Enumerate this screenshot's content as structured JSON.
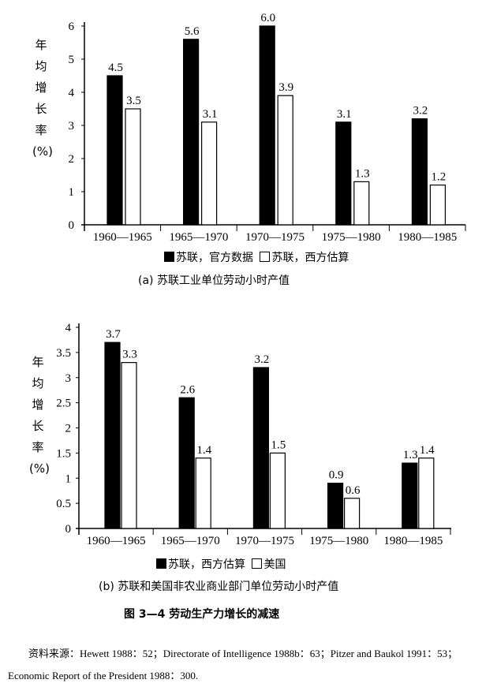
{
  "chart_data": [
    {
      "type": "bar",
      "title": "(a)  苏联工业单位劳动小时产值",
      "ylabel": "年均增长率(%)",
      "xlabel": "",
      "categories": [
        "1960—1965",
        "1965—1970",
        "1970—1975",
        "1975—1980",
        "1980—1985"
      ],
      "ylim": [
        0,
        6
      ],
      "yticks": [
        "0",
        "1",
        "2",
        "3",
        "4",
        "5",
        "6"
      ],
      "grid": false,
      "legend_position": "bottom",
      "series": [
        {
          "name": "苏联，官方数据",
          "color": "#000000",
          "values": [
            4.5,
            5.6,
            6.0,
            3.1,
            3.2
          ],
          "labels": [
            "4.5",
            "5.6",
            "6.0",
            "3.1",
            "3.2"
          ]
        },
        {
          "name": "苏联，西方估算",
          "color": "#ffffff",
          "values": [
            3.5,
            3.1,
            3.9,
            1.3,
            1.2
          ],
          "labels": [
            "3.5",
            "3.1",
            "3.9",
            "1.3",
            "1.2"
          ]
        }
      ]
    },
    {
      "type": "bar",
      "title": "(b)  苏联和美国非农业商业部门单位劳动小时产值",
      "ylabel": "年均增长率(%)",
      "xlabel": "",
      "categories": [
        "1960—1965",
        "1965—1970",
        "1970—1975",
        "1975—1980",
        "1980—1985"
      ],
      "ylim": [
        0,
        4
      ],
      "yticks": [
        "0",
        "0.5",
        "1",
        "1.5",
        "2",
        "2.5",
        "3",
        "3.5",
        "4"
      ],
      "grid": false,
      "legend_position": "bottom",
      "series": [
        {
          "name": "苏联，西方估算",
          "color": "#000000",
          "values": [
            3.7,
            2.6,
            3.2,
            0.9,
            1.3
          ],
          "labels": [
            "3.7",
            "2.6",
            "3.2",
            "0.9",
            "1.3"
          ]
        },
        {
          "name": "美国",
          "color": "#ffffff",
          "values": [
            3.3,
            1.4,
            1.5,
            0.6,
            1.4
          ],
          "labels": [
            "3.3",
            "1.4",
            "1.5",
            "0.6",
            "1.4"
          ]
        }
      ]
    }
  ],
  "figure_title": "图 3—4   劳动生产力增长的减速",
  "source_note": "资料来源：Hewett 1988：52；Directorate of Intelligence 1988b：63；Pitzer and Baukol 1991：53；Economic Report of the President 1988：300."
}
